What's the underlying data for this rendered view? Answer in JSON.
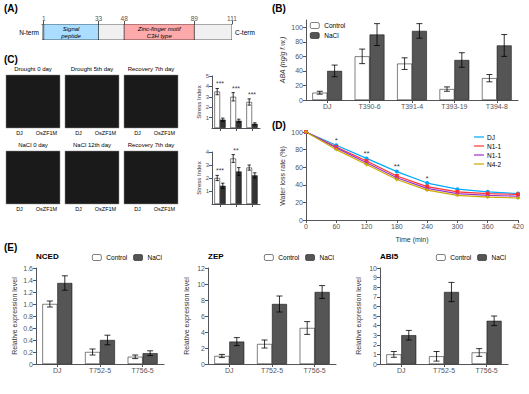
{
  "chart_data": [
    {
      "type": "domain_map",
      "panel_label": "(A)",
      "color": "#f0f0f0",
      "xlim": [
        0,
        111
      ],
      "xticks": [
        1,
        33,
        48,
        89,
        111
      ],
      "domains": [
        {
          "name": "Signal\npeptide",
          "start": 1,
          "end": 33,
          "color": "#aaddff"
        },
        {
          "name": "Zinc-finger motif\nC3H type",
          "start": 48,
          "end": 89,
          "color": "#ffaaaa"
        }
      ],
      "start_label": "N-term",
      "end_label": "C-term",
      "tick_labels": "x"
    },
    {
      "type": "bar",
      "panel_label": "(B)",
      "categories": [
        "DJ",
        "T390-6",
        "T391-4",
        "T393-19",
        "T394-8"
      ],
      "series": [
        {
          "name": "Control",
          "color": "#ffffff",
          "values": [
            10,
            60,
            50,
            15,
            30
          ],
          "errors": [
            2,
            10,
            8,
            3,
            5
          ]
        },
        {
          "name": "NaCl",
          "color": "#555555",
          "values": [
            40,
            90,
            95,
            55,
            75
          ],
          "errors": [
            8,
            15,
            10,
            10,
            15
          ]
        }
      ],
      "ylabel": "ABA (ng/g f.w.)",
      "ylim": [
        0,
        110
      ],
      "yticks": [
        0,
        20,
        40,
        60,
        80,
        100
      ],
      "legend": "upper left"
    },
    {
      "type": "photo_grid",
      "panel_label": "(C)",
      "color": "#1a1a1a",
      "rows": [
        [
          "Drought 0 day",
          "Drought 5th day",
          "Recovery 7th day"
        ],
        [
          "NaCl 0 day",
          "NaCl 12th day",
          "Recovery 7th day"
        ]
      ],
      "plant_labels": [
        "DJ",
        "OsZF1M"
      ]
    },
    {
      "type": "bar",
      "categories": [
        null,
        null,
        null
      ],
      "series": [
        {
          "color": "#ffffff",
          "values": [
            3.5,
            3.0,
            2.5
          ],
          "errors": [
            0.3,
            0.4,
            0.3
          ]
        },
        {
          "color": "#333333",
          "values": [
            0.8,
            0.7,
            0.4
          ],
          "errors": [
            0.15,
            0.15,
            0.1
          ]
        }
      ],
      "ylabel": "Stress Index",
      "ylim": [
        0,
        5
      ],
      "yticks": [
        1,
        2,
        3,
        4,
        5
      ],
      "annotations": [
        "***",
        "***",
        "***"
      ],
      "tick_labels": "y"
    },
    {
      "type": "bar",
      "categories": [
        null,
        null,
        null
      ],
      "series": [
        {
          "color": "#ffffff",
          "values": [
            2.0,
            3.5,
            2.8
          ],
          "errors": [
            0.2,
            0.3,
            0.2
          ]
        },
        {
          "color": "#333333",
          "values": [
            1.4,
            2.5,
            2.2
          ],
          "errors": [
            0.2,
            0.3,
            0.2
          ]
        }
      ],
      "ylabel": "Stress Index",
      "ylim": [
        0,
        4
      ],
      "yticks": [
        1,
        2,
        3,
        4
      ],
      "annotations": [
        "***",
        "**",
        null
      ],
      "tick_labels": "y"
    },
    {
      "type": "line",
      "panel_label": "(D)",
      "x": [
        0,
        60,
        120,
        180,
        240,
        300,
        360,
        420
      ],
      "series": [
        {
          "name": "DJ",
          "color": "#00aaff",
          "marker": "circle",
          "values": [
            100,
            85,
            70,
            55,
            42,
            35,
            32,
            30
          ]
        },
        {
          "name": "N1-1",
          "color": "#ff3333",
          "marker": "square",
          "values": [
            100,
            83,
            67,
            50,
            38,
            32,
            30,
            29
          ]
        },
        {
          "name": "N1-1",
          "color": "#9933cc",
          "marker": "triangle",
          "values": [
            100,
            82,
            65,
            48,
            36,
            30,
            28,
            27
          ]
        },
        {
          "name": "N4-2",
          "color": "#ccaa00",
          "marker": "diamond",
          "values": [
            100,
            80,
            63,
            46,
            34,
            28,
            26,
            25
          ]
        }
      ],
      "xlabel": "Time (min)",
      "ylabel": "Water loss rate (%)",
      "xlim": [
        0,
        420
      ],
      "ylim": [
        0,
        100
      ],
      "xticks": [
        0,
        60,
        120,
        180,
        240,
        300,
        360,
        420
      ],
      "yticks": [
        0,
        20,
        40,
        60,
        80,
        100
      ],
      "legend": "upper right",
      "annotations": [
        {
          "x": 60,
          "y": 85,
          "text": "*"
        },
        {
          "x": 120,
          "y": 70,
          "text": "**"
        },
        {
          "x": 180,
          "y": 55,
          "text": "**"
        },
        {
          "x": 240,
          "y": 42,
          "text": "*"
        }
      ]
    },
    {
      "type": "bar",
      "panel_label": "(E)",
      "title": "NCED",
      "categories": [
        "DJ",
        "T752-5",
        "T756-5"
      ],
      "series": [
        {
          "name": "Control",
          "color": "#ffffff",
          "values": [
            1.0,
            0.2,
            0.12
          ],
          "errors": [
            0.05,
            0.05,
            0.03
          ]
        },
        {
          "name": "NaCl",
          "color": "#555555",
          "values": [
            1.35,
            0.4,
            0.18
          ],
          "errors": [
            0.12,
            0.08,
            0.04
          ]
        }
      ],
      "ylabel": "Relative expression level",
      "ylim": [
        0,
        1.6
      ],
      "yticks": [
        0,
        0.2,
        0.4,
        0.6,
        0.8,
        {
          "value": 1.0,
          "label": "1.0"
        },
        1.2,
        1.4,
        1.6
      ],
      "legend": "upper right"
    },
    {
      "type": "bar",
      "title": "ZEP",
      "categories": [
        "DJ",
        "T752-5",
        "T756-5"
      ],
      "series": [
        {
          "name": "Control",
          "color": "#ffffff",
          "values": [
            1.0,
            2.5,
            4.5
          ],
          "errors": [
            0.2,
            0.5,
            0.8
          ]
        },
        {
          "name": "NaCl",
          "color": "#555555",
          "values": [
            2.8,
            7.5,
            9.0
          ],
          "errors": [
            0.5,
            1.0,
            0.8
          ]
        }
      ],
      "ylabel": "Relative expression level",
      "ylim": [
        0,
        12
      ],
      "yticks": [
        0,
        2,
        4,
        6,
        8,
        10,
        12
      ],
      "legend": "upper right"
    },
    {
      "type": "bar",
      "title": "ABI5",
      "categories": [
        "DJ",
        "T752-5",
        "T756-5"
      ],
      "series": [
        {
          "name": "Control",
          "color": "#ffffff",
          "values": [
            1.0,
            0.8,
            1.2
          ],
          "errors": [
            0.3,
            0.5,
            0.4
          ]
        },
        {
          "name": "NaCl",
          "color": "#555555",
          "values": [
            3.0,
            7.5,
            4.5
          ],
          "errors": [
            0.5,
            1.0,
            0.5
          ]
        }
      ],
      "ylabel": "Relative expression level",
      "ylim": [
        0,
        10
      ],
      "yticks": [
        0,
        1,
        2,
        3,
        4,
        5,
        6,
        7,
        8,
        9,
        10
      ],
      "legend": "upper right"
    }
  ]
}
